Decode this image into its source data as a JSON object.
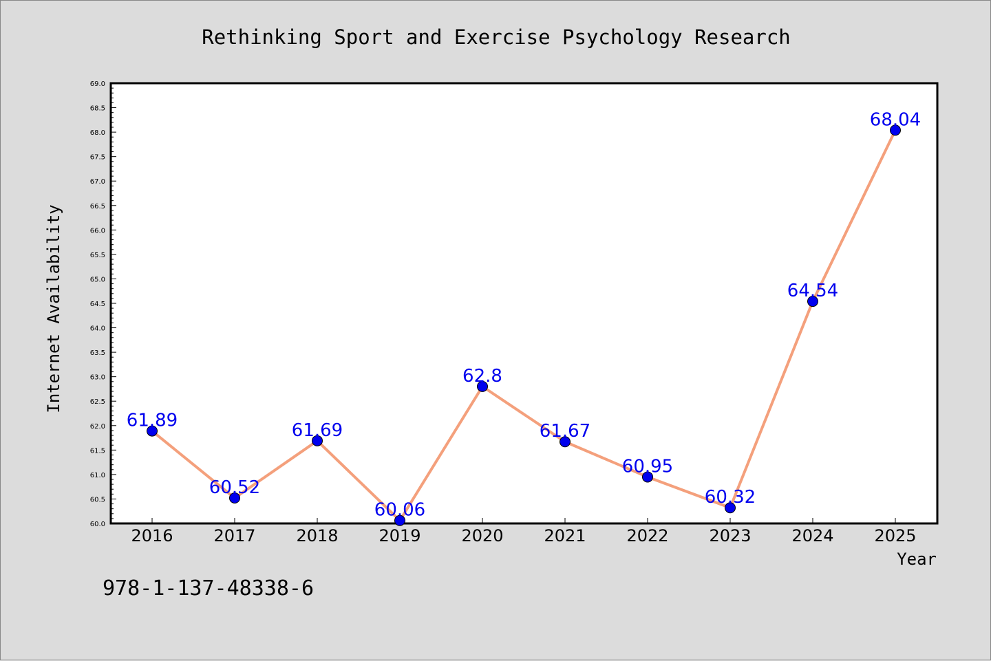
{
  "chart_data": {
    "type": "line",
    "title": "Rethinking Sport and Exercise Psychology Research",
    "xlabel": "Year",
    "ylabel": "Internet Availability",
    "categories": [
      "2016",
      "2017",
      "2018",
      "2019",
      "2020",
      "2021",
      "2022",
      "2023",
      "2024",
      "2025"
    ],
    "values": [
      61.89,
      60.52,
      61.69,
      60.06,
      62.8,
      61.67,
      60.95,
      60.32,
      64.54,
      68.04
    ],
    "data_labels": [
      "61.89",
      "60.52",
      "61.69",
      "60.06",
      "62.8",
      "61.67",
      "60.95",
      "60.32",
      "64.54",
      "68.04"
    ],
    "ylim": [
      60.0,
      69.0
    ],
    "yticks": [
      "60.0",
      "60.5",
      "61.0",
      "61.5",
      "62.0",
      "62.5",
      "63.0",
      "63.5",
      "64.0",
      "64.5",
      "65.0",
      "65.5",
      "66.0",
      "66.5",
      "67.0",
      "67.5",
      "68.0",
      "68.5",
      "69.0"
    ],
    "grid": false,
    "line_color": "#f4a07c",
    "marker_color": "#0000ee",
    "label_color": "#0000ee"
  },
  "footer": {
    "isbn": "978-1-137-48338-6"
  }
}
